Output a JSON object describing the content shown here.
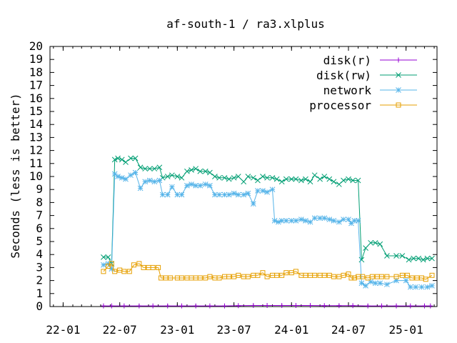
{
  "chart_data": {
    "type": "line",
    "title": "af-south-1 / ra3.xlplus",
    "xlabel": "",
    "ylabel": "Seconds (less is better)",
    "x_axis": {
      "kind": "date",
      "range": [
        "2021-11-20",
        "2025-04-10"
      ],
      "ticks": [
        {
          "label": "22-01",
          "date": "2022-01-01"
        },
        {
          "label": "22-07",
          "date": "2022-07-01"
        },
        {
          "label": "23-01",
          "date": "2023-01-01"
        },
        {
          "label": "23-07",
          "date": "2023-07-01"
        },
        {
          "label": "24-01",
          "date": "2024-01-01"
        },
        {
          "label": "24-07",
          "date": "2024-07-01"
        },
        {
          "label": "25-01",
          "date": "2025-01-01"
        }
      ]
    },
    "ylim": [
      0,
      20
    ],
    "yticks": [
      0,
      1,
      2,
      3,
      4,
      5,
      6,
      7,
      8,
      9,
      10,
      11,
      12,
      13,
      14,
      15,
      16,
      17,
      18,
      19,
      20
    ],
    "grid": false,
    "legend_position": "top-right",
    "series": [
      {
        "name": "disk(r)",
        "color": "#9400d3",
        "marker": "plus",
        "points": [
          [
            "2022-05-10",
            0.05
          ],
          [
            "2022-06-05",
            0.05
          ],
          [
            "2022-07-15",
            0.05
          ],
          [
            "2022-09-01",
            0.05
          ],
          [
            "2022-10-15",
            0.05
          ],
          [
            "2022-12-01",
            0.05
          ],
          [
            "2023-01-15",
            0.05
          ],
          [
            "2023-03-01",
            0.05
          ],
          [
            "2023-04-15",
            0.05
          ],
          [
            "2023-06-01",
            0.05
          ],
          [
            "2023-07-15",
            0.07
          ],
          [
            "2023-09-01",
            0.08
          ],
          [
            "2023-10-15",
            0.08
          ],
          [
            "2023-12-01",
            0.08
          ],
          [
            "2024-01-15",
            0.08
          ],
          [
            "2024-03-01",
            0.08
          ],
          [
            "2024-04-15",
            0.07
          ],
          [
            "2024-06-01",
            0.07
          ],
          [
            "2024-07-15",
            0.07
          ],
          [
            "2024-09-01",
            0.05
          ],
          [
            "2024-10-15",
            0.05
          ],
          [
            "2024-12-01",
            0.05
          ],
          [
            "2025-01-15",
            0.05
          ],
          [
            "2025-03-01",
            0.05
          ],
          [
            "2025-03-20",
            0.05
          ]
        ]
      },
      {
        "name": "disk(rw)",
        "color": "#009e73",
        "marker": "cross",
        "points": [
          [
            "2022-05-10",
            3.8
          ],
          [
            "2022-05-25",
            3.8
          ],
          [
            "2022-06-05",
            3.3
          ],
          [
            "2022-06-15",
            11.3
          ],
          [
            "2022-06-25",
            11.4
          ],
          [
            "2022-07-08",
            11.3
          ],
          [
            "2022-07-20",
            11.1
          ],
          [
            "2022-08-05",
            11.4
          ],
          [
            "2022-08-20",
            11.4
          ],
          [
            "2022-09-05",
            10.7
          ],
          [
            "2022-09-20",
            10.6
          ],
          [
            "2022-10-05",
            10.6
          ],
          [
            "2022-10-20",
            10.6
          ],
          [
            "2022-11-05",
            10.7
          ],
          [
            "2022-11-15",
            9.9
          ],
          [
            "2022-12-01",
            10.0
          ],
          [
            "2022-12-15",
            10.1
          ],
          [
            "2023-01-01",
            10.0
          ],
          [
            "2023-01-15",
            9.9
          ],
          [
            "2023-02-01",
            10.4
          ],
          [
            "2023-02-15",
            10.5
          ],
          [
            "2023-03-01",
            10.6
          ],
          [
            "2023-03-15",
            10.4
          ],
          [
            "2023-04-01",
            10.4
          ],
          [
            "2023-04-15",
            10.3
          ],
          [
            "2023-05-01",
            10.0
          ],
          [
            "2023-05-15",
            9.9
          ],
          [
            "2023-06-01",
            9.9
          ],
          [
            "2023-06-15",
            9.8
          ],
          [
            "2023-07-01",
            9.9
          ],
          [
            "2023-07-15",
            10.0
          ],
          [
            "2023-08-01",
            9.6
          ],
          [
            "2023-08-15",
            10.0
          ],
          [
            "2023-09-01",
            9.9
          ],
          [
            "2023-09-15",
            9.7
          ],
          [
            "2023-10-01",
            10.0
          ],
          [
            "2023-10-15",
            9.9
          ],
          [
            "2023-11-01",
            9.9
          ],
          [
            "2023-11-15",
            9.8
          ],
          [
            "2023-12-01",
            9.6
          ],
          [
            "2023-12-15",
            9.8
          ],
          [
            "2024-01-01",
            9.8
          ],
          [
            "2024-01-15",
            9.8
          ],
          [
            "2024-02-01",
            9.7
          ],
          [
            "2024-02-15",
            9.8
          ],
          [
            "2024-03-01",
            9.6
          ],
          [
            "2024-03-15",
            10.1
          ],
          [
            "2024-04-01",
            9.8
          ],
          [
            "2024-04-15",
            10.0
          ],
          [
            "2024-05-01",
            9.8
          ],
          [
            "2024-05-15",
            9.6
          ],
          [
            "2024-06-01",
            9.4
          ],
          [
            "2024-06-15",
            9.7
          ],
          [
            "2024-07-01",
            9.8
          ],
          [
            "2024-07-15",
            9.7
          ],
          [
            "2024-08-01",
            9.7
          ],
          [
            "2024-08-12",
            3.6
          ],
          [
            "2024-08-25",
            4.5
          ],
          [
            "2024-09-10",
            4.9
          ],
          [
            "2024-09-25",
            4.9
          ],
          [
            "2024-10-10",
            4.8
          ],
          [
            "2024-11-01",
            3.9
          ],
          [
            "2024-12-01",
            3.9
          ],
          [
            "2024-12-20",
            3.9
          ],
          [
            "2025-01-10",
            3.6
          ],
          [
            "2025-01-25",
            3.7
          ],
          [
            "2025-02-10",
            3.7
          ],
          [
            "2025-02-25",
            3.6
          ],
          [
            "2025-03-10",
            3.7
          ],
          [
            "2025-03-25",
            3.7
          ]
        ]
      },
      {
        "name": "network",
        "color": "#56b4e9",
        "marker": "star",
        "points": [
          [
            "2022-05-10",
            3.2
          ],
          [
            "2022-05-25",
            3.3
          ],
          [
            "2022-06-05",
            2.9
          ],
          [
            "2022-06-15",
            10.2
          ],
          [
            "2022-06-25",
            10.0
          ],
          [
            "2022-07-08",
            9.9
          ],
          [
            "2022-07-20",
            9.8
          ],
          [
            "2022-08-05",
            10.1
          ],
          [
            "2022-08-20",
            10.3
          ],
          [
            "2022-09-05",
            9.1
          ],
          [
            "2022-09-20",
            9.6
          ],
          [
            "2022-10-05",
            9.7
          ],
          [
            "2022-10-20",
            9.6
          ],
          [
            "2022-11-05",
            9.7
          ],
          [
            "2022-11-15",
            8.6
          ],
          [
            "2022-12-01",
            8.6
          ],
          [
            "2022-12-15",
            9.2
          ],
          [
            "2023-01-01",
            8.6
          ],
          [
            "2023-01-15",
            8.6
          ],
          [
            "2023-02-01",
            9.3
          ],
          [
            "2023-02-15",
            9.4
          ],
          [
            "2023-03-01",
            9.3
          ],
          [
            "2023-03-15",
            9.3
          ],
          [
            "2023-04-01",
            9.4
          ],
          [
            "2023-04-15",
            9.3
          ],
          [
            "2023-05-01",
            8.6
          ],
          [
            "2023-05-15",
            8.6
          ],
          [
            "2023-06-01",
            8.6
          ],
          [
            "2023-06-15",
            8.6
          ],
          [
            "2023-07-01",
            8.7
          ],
          [
            "2023-07-15",
            8.6
          ],
          [
            "2023-08-01",
            8.6
          ],
          [
            "2023-08-15",
            8.7
          ],
          [
            "2023-09-01",
            7.9
          ],
          [
            "2023-09-15",
            8.9
          ],
          [
            "2023-10-01",
            8.9
          ],
          [
            "2023-10-15",
            8.8
          ],
          [
            "2023-11-01",
            9.0
          ],
          [
            "2023-11-08",
            6.6
          ],
          [
            "2023-11-20",
            6.5
          ],
          [
            "2023-12-01",
            6.6
          ],
          [
            "2023-12-15",
            6.6
          ],
          [
            "2024-01-01",
            6.6
          ],
          [
            "2024-01-15",
            6.6
          ],
          [
            "2024-02-01",
            6.7
          ],
          [
            "2024-02-15",
            6.6
          ],
          [
            "2024-03-01",
            6.5
          ],
          [
            "2024-03-15",
            6.8
          ],
          [
            "2024-04-01",
            6.8
          ],
          [
            "2024-04-15",
            6.8
          ],
          [
            "2024-05-01",
            6.7
          ],
          [
            "2024-05-15",
            6.6
          ],
          [
            "2024-06-01",
            6.5
          ],
          [
            "2024-06-15",
            6.7
          ],
          [
            "2024-07-01",
            6.7
          ],
          [
            "2024-07-10",
            6.4
          ],
          [
            "2024-07-20",
            6.6
          ],
          [
            "2024-08-01",
            6.6
          ],
          [
            "2024-08-12",
            1.8
          ],
          [
            "2024-08-25",
            1.6
          ],
          [
            "2024-09-10",
            1.9
          ],
          [
            "2024-09-25",
            1.8
          ],
          [
            "2024-10-10",
            1.8
          ],
          [
            "2024-11-01",
            1.7
          ],
          [
            "2024-12-01",
            2.0
          ],
          [
            "2025-01-01",
            2.0
          ],
          [
            "2025-01-15",
            1.5
          ],
          [
            "2025-02-01",
            1.5
          ],
          [
            "2025-02-20",
            1.5
          ],
          [
            "2025-03-10",
            1.5
          ],
          [
            "2025-03-25",
            1.6
          ]
        ]
      },
      {
        "name": "processor",
        "color": "#e69f00",
        "marker": "square",
        "points": [
          [
            "2022-05-10",
            2.7
          ],
          [
            "2022-05-25",
            3.1
          ],
          [
            "2022-06-05",
            3.3
          ],
          [
            "2022-06-15",
            2.7
          ],
          [
            "2022-07-01",
            2.8
          ],
          [
            "2022-07-15",
            2.7
          ],
          [
            "2022-08-01",
            2.7
          ],
          [
            "2022-08-15",
            3.2
          ],
          [
            "2022-09-01",
            3.3
          ],
          [
            "2022-09-15",
            3.0
          ],
          [
            "2022-10-01",
            3.0
          ],
          [
            "2022-10-15",
            3.0
          ],
          [
            "2022-11-01",
            3.0
          ],
          [
            "2022-11-10",
            2.2
          ],
          [
            "2022-11-25",
            2.2
          ],
          [
            "2022-12-10",
            2.2
          ],
          [
            "2023-01-01",
            2.2
          ],
          [
            "2023-01-15",
            2.2
          ],
          [
            "2023-02-01",
            2.2
          ],
          [
            "2023-02-15",
            2.2
          ],
          [
            "2023-03-01",
            2.2
          ],
          [
            "2023-03-15",
            2.2
          ],
          [
            "2023-04-01",
            2.2
          ],
          [
            "2023-04-15",
            2.3
          ],
          [
            "2023-05-01",
            2.2
          ],
          [
            "2023-05-15",
            2.2
          ],
          [
            "2023-06-01",
            2.3
          ],
          [
            "2023-06-15",
            2.3
          ],
          [
            "2023-07-01",
            2.3
          ],
          [
            "2023-07-15",
            2.4
          ],
          [
            "2023-08-01",
            2.3
          ],
          [
            "2023-08-15",
            2.3
          ],
          [
            "2023-09-01",
            2.4
          ],
          [
            "2023-09-15",
            2.4
          ],
          [
            "2023-10-01",
            2.6
          ],
          [
            "2023-10-15",
            2.3
          ],
          [
            "2023-11-01",
            2.4
          ],
          [
            "2023-11-15",
            2.4
          ],
          [
            "2023-12-01",
            2.4
          ],
          [
            "2023-12-15",
            2.6
          ],
          [
            "2024-01-01",
            2.6
          ],
          [
            "2024-01-15",
            2.7
          ],
          [
            "2024-02-01",
            2.4
          ],
          [
            "2024-02-15",
            2.4
          ],
          [
            "2024-03-01",
            2.4
          ],
          [
            "2024-03-15",
            2.4
          ],
          [
            "2024-04-01",
            2.4
          ],
          [
            "2024-04-15",
            2.4
          ],
          [
            "2024-05-01",
            2.4
          ],
          [
            "2024-05-15",
            2.3
          ],
          [
            "2024-06-01",
            2.3
          ],
          [
            "2024-06-15",
            2.4
          ],
          [
            "2024-07-01",
            2.5
          ],
          [
            "2024-07-10",
            2.2
          ],
          [
            "2024-07-20",
            2.2
          ],
          [
            "2024-08-01",
            2.3
          ],
          [
            "2024-08-15",
            2.3
          ],
          [
            "2024-09-01",
            2.2
          ],
          [
            "2024-09-15",
            2.3
          ],
          [
            "2024-10-01",
            2.3
          ],
          [
            "2024-10-15",
            2.3
          ],
          [
            "2024-11-01",
            2.3
          ],
          [
            "2024-12-01",
            2.3
          ],
          [
            "2024-12-20",
            2.4
          ],
          [
            "2025-01-05",
            2.4
          ],
          [
            "2025-01-20",
            2.2
          ],
          [
            "2025-02-05",
            2.2
          ],
          [
            "2025-02-20",
            2.2
          ],
          [
            "2025-03-05",
            2.1
          ],
          [
            "2025-03-25",
            2.4
          ]
        ]
      }
    ]
  }
}
